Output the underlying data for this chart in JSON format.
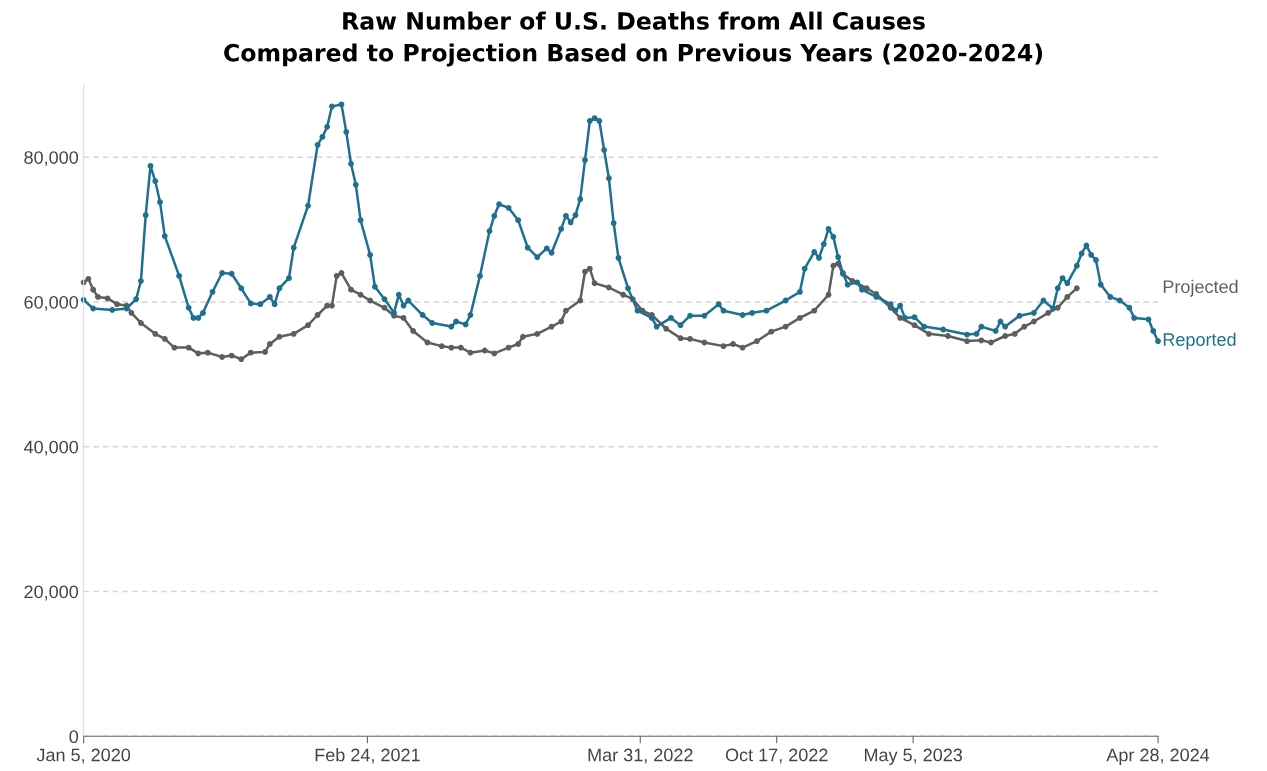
{
  "chart_data": {
    "type": "line",
    "title": "Raw Number of U.S. Deaths from All Causes\nCompared to Projection Based on Previous Years (2020-2024)",
    "xlim": [
      "2020-01-05",
      "2024-04-28"
    ],
    "xticks": [
      {
        "value": "2020-01-05",
        "label": "Jan 5, 2020"
      },
      {
        "value": "2021-02-24",
        "label": "Feb 24, 2021"
      },
      {
        "value": "2022-03-31",
        "label": "Mar 31, 2022"
      },
      {
        "value": "2022-10-17",
        "label": "Oct 17, 2022"
      },
      {
        "value": "2023-05-05",
        "label": "May 5, 2023"
      },
      {
        "value": "2024-04-28",
        "label": "Apr 28, 2024"
      }
    ],
    "ylim": [
      0,
      90000
    ],
    "yticks": [
      0,
      {
        "value": 20000,
        "label": "20,000"
      },
      {
        "value": 40000,
        "label": "40,000"
      },
      {
        "value": 60000,
        "label": "60,000"
      },
      {
        "value": 80000,
        "label": "80,000"
      }
    ],
    "grid": "y",
    "legend": false,
    "marker": "circle",
    "line_style": "solid",
    "series": [
      {
        "name": "Projected",
        "color": "#5e5e5e",
        "x": [
          "2020-01-05",
          "2020-01-12",
          "2020-01-19",
          "2020-01-26",
          "2020-02-09",
          "2020-02-23",
          "2020-03-08",
          "2020-03-15",
          "2020-03-29",
          "2020-04-19",
          "2020-05-03",
          "2020-05-17",
          "2020-06-07",
          "2020-06-21",
          "2020-07-05",
          "2020-07-26",
          "2020-08-09",
          "2020-08-23",
          "2020-09-06",
          "2020-09-27",
          "2020-10-04",
          "2020-10-18",
          "2020-11-08",
          "2020-11-29",
          "2020-12-13",
          "2020-12-27",
          "2021-01-03",
          "2021-01-10",
          "2021-01-17",
          "2021-01-31",
          "2021-02-14",
          "2021-02-28",
          "2021-03-21",
          "2021-04-04",
          "2021-04-18",
          "2021-05-02",
          "2021-05-23",
          "2021-06-13",
          "2021-06-27",
          "2021-07-11",
          "2021-07-25",
          "2021-08-15",
          "2021-08-29",
          "2021-09-19",
          "2021-10-03",
          "2021-10-10",
          "2021-10-31",
          "2021-11-21",
          "2021-12-05",
          "2021-12-12",
          "2022-01-02",
          "2022-01-09",
          "2022-01-16",
          "2022-01-23",
          "2022-02-13",
          "2022-03-06",
          "2022-03-20",
          "2022-04-03",
          "2022-04-17",
          "2022-05-08",
          "2022-05-29",
          "2022-06-12",
          "2022-07-03",
          "2022-07-31",
          "2022-08-14",
          "2022-08-28",
          "2022-09-18",
          "2022-10-09",
          "2022-10-30",
          "2022-11-20",
          "2022-12-11",
          "2023-01-01",
          "2023-01-08",
          "2023-01-15",
          "2023-01-22",
          "2023-02-05",
          "2023-02-26",
          "2023-03-12",
          "2023-04-02",
          "2023-04-16",
          "2023-05-07",
          "2023-05-28",
          "2023-06-25",
          "2023-07-23",
          "2023-08-13",
          "2023-08-27",
          "2023-09-17",
          "2023-10-01",
          "2023-10-15",
          "2023-10-29",
          "2023-11-19",
          "2023-12-03",
          "2023-12-17",
          "2023-12-31"
        ],
        "values": [
          62700,
          63200,
          61700,
          60700,
          60500,
          59700,
          59500,
          58500,
          57100,
          55600,
          54900,
          53700,
          53700,
          52900,
          53000,
          52400,
          52600,
          52100,
          53000,
          53100,
          54200,
          55200,
          55600,
          56800,
          58200,
          59500,
          59500,
          63600,
          64000,
          61700,
          61000,
          60200,
          59200,
          58100,
          57800,
          56000,
          54400,
          53900,
          53700,
          53700,
          53000,
          53300,
          52900,
          53700,
          54200,
          55200,
          55600,
          56600,
          57300,
          58800,
          60200,
          64200,
          64600,
          62600,
          62000,
          61000,
          60400,
          58800,
          58200,
          56300,
          55000,
          54900,
          54400,
          53900,
          54200,
          53700,
          54600,
          55900,
          56600,
          57800,
          58800,
          61000,
          65000,
          65300,
          63900,
          62900,
          61900,
          61100,
          59200,
          57800,
          56800,
          55600,
          55300,
          54600,
          54700,
          54400,
          55300,
          55600,
          56600,
          57300,
          58500,
          59200,
          60700,
          61900
        ]
      },
      {
        "name": "Reported",
        "color": "#1f7090",
        "x": [
          "2020-01-05",
          "2020-01-19",
          "2020-02-16",
          "2020-03-08",
          "2020-03-22",
          "2020-03-29",
          "2020-04-05",
          "2020-04-12",
          "2020-04-19",
          "2020-04-26",
          "2020-05-03",
          "2020-05-24",
          "2020-06-07",
          "2020-06-14",
          "2020-06-21",
          "2020-06-28",
          "2020-07-12",
          "2020-07-26",
          "2020-08-09",
          "2020-08-23",
          "2020-09-06",
          "2020-09-20",
          "2020-10-04",
          "2020-10-11",
          "2020-10-18",
          "2020-11-01",
          "2020-11-08",
          "2020-11-29",
          "2020-12-13",
          "2020-12-20",
          "2020-12-27",
          "2021-01-03",
          "2021-01-17",
          "2021-01-24",
          "2021-01-31",
          "2021-02-07",
          "2021-02-14",
          "2021-02-28",
          "2021-03-07",
          "2021-03-21",
          "2021-04-04",
          "2021-04-11",
          "2021-04-18",
          "2021-04-25",
          "2021-05-16",
          "2021-05-30",
          "2021-06-27",
          "2021-07-04",
          "2021-07-18",
          "2021-07-25",
          "2021-08-08",
          "2021-08-22",
          "2021-08-29",
          "2021-09-05",
          "2021-09-19",
          "2021-10-03",
          "2021-10-17",
          "2021-10-31",
          "2021-11-14",
          "2021-11-21",
          "2021-12-05",
          "2021-12-12",
          "2021-12-19",
          "2021-12-26",
          "2022-01-02",
          "2022-01-09",
          "2022-01-16",
          "2022-01-23",
          "2022-01-30",
          "2022-02-06",
          "2022-02-13",
          "2022-02-20",
          "2022-02-27",
          "2022-03-13",
          "2022-03-27",
          "2022-04-17",
          "2022-04-24",
          "2022-05-15",
          "2022-05-29",
          "2022-06-12",
          "2022-07-03",
          "2022-07-24",
          "2022-07-31",
          "2022-08-28",
          "2022-09-11",
          "2022-10-02",
          "2022-10-30",
          "2022-11-20",
          "2022-11-27",
          "2022-12-11",
          "2022-12-18",
          "2022-12-25",
          "2023-01-01",
          "2023-01-08",
          "2023-01-15",
          "2023-01-22",
          "2023-01-29",
          "2023-02-12",
          "2023-02-19",
          "2023-03-12",
          "2023-04-02",
          "2023-04-09",
          "2023-04-16",
          "2023-04-23",
          "2023-05-07",
          "2023-05-21",
          "2023-06-18",
          "2023-07-23",
          "2023-08-06",
          "2023-08-13",
          "2023-09-03",
          "2023-09-10",
          "2023-09-17",
          "2023-10-08",
          "2023-10-29",
          "2023-11-12",
          "2023-11-26",
          "2023-12-03",
          "2023-12-10",
          "2023-12-17",
          "2023-12-31",
          "2024-01-07",
          "2024-01-14",
          "2024-01-21",
          "2024-01-28",
          "2024-02-04",
          "2024-02-18",
          "2024-03-03",
          "2024-03-17",
          "2024-03-24",
          "2024-04-14",
          "2024-04-21",
          "2024-04-28"
        ],
        "values": [
          60300,
          59100,
          58900,
          59100,
          60400,
          62900,
          72000,
          78800,
          76700,
          73800,
          69100,
          63600,
          59200,
          57800,
          57800,
          58500,
          61400,
          64000,
          63900,
          61900,
          59800,
          59700,
          60700,
          59700,
          61900,
          63300,
          67500,
          73300,
          81700,
          82800,
          84200,
          87000,
          87300,
          83500,
          79100,
          76200,
          71300,
          66500,
          62100,
          60400,
          58500,
          61000,
          59500,
          60200,
          58200,
          57100,
          56600,
          57300,
          56900,
          58200,
          63600,
          69800,
          71900,
          73500,
          73000,
          71300,
          67500,
          66200,
          67400,
          66800,
          70100,
          71900,
          71000,
          72000,
          74200,
          79600,
          85000,
          85400,
          85000,
          81000,
          77100,
          70900,
          66100,
          61900,
          58800,
          57800,
          56600,
          57800,
          56800,
          58100,
          58100,
          59700,
          58800,
          58200,
          58500,
          58800,
          60200,
          61400,
          64600,
          66900,
          66100,
          68000,
          70100,
          69000,
          66200,
          64000,
          62400,
          62700,
          61700,
          60700,
          59700,
          58800,
          59500,
          57800,
          57900,
          56600,
          56200,
          55500,
          55600,
          56600,
          56000,
          57300,
          56600,
          58100,
          58500,
          60200,
          59100,
          61900,
          63300,
          62600,
          65000,
          66700,
          67800,
          66500,
          65800,
          62400,
          60700,
          60200,
          59200,
          57800,
          57600,
          56000,
          54600
        ]
      }
    ]
  }
}
